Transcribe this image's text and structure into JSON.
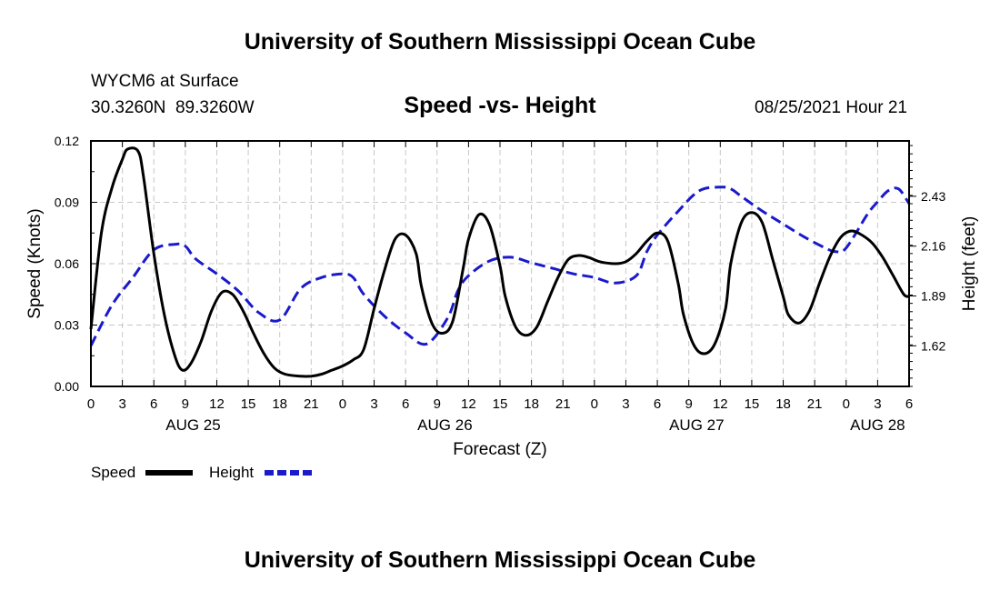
{
  "header": {
    "title": "University of Southern Mississippi Ocean Cube",
    "station": "WYCM6 at Surface",
    "coords": "30.3260N  89.3260W",
    "date": "08/25/2021 Hour 21"
  },
  "footer": {
    "title": "University of Southern Mississippi Ocean Cube"
  },
  "legend": {
    "speed_label": "Speed",
    "height_label": "Height"
  },
  "colors": {
    "speed": "#000000",
    "height": "#1a1acc",
    "grid": "#c8c8c8"
  },
  "chart_data": {
    "type": "line",
    "title": "Speed -vs- Height",
    "xlabel": "Forecast (Z)",
    "ylabel": "Speed (Knots)",
    "y2label": "Height (feet)",
    "xlim": [
      0,
      78
    ],
    "ylim": [
      0,
      0.12
    ],
    "y2lim": [
      1.4,
      2.73
    ],
    "yticks": [
      "0.00",
      "0.03",
      "0.06",
      "0.09",
      "0.12"
    ],
    "y2ticks": [
      "1.62",
      "1.89",
      "2.16",
      "2.43"
    ],
    "xticks": [
      "0",
      "3",
      "6",
      "9",
      "12",
      "15",
      "18",
      "21",
      "0",
      "3",
      "6",
      "9",
      "12",
      "15",
      "18",
      "21",
      "0",
      "3",
      "6",
      "9",
      "12",
      "15",
      "18",
      "21",
      "0",
      "3",
      "6"
    ],
    "day_labels": [
      {
        "label": "AUG 25",
        "hour": 9.75
      },
      {
        "label": "AUG 26",
        "hour": 33.75
      },
      {
        "label": "AUG 27",
        "hour": 57.75
      },
      {
        "label": "AUG 28",
        "hour": 75
      }
    ],
    "series": [
      {
        "name": "Speed",
        "axis": "left",
        "x": [
          0,
          1,
          2,
          3,
          3.5,
          4.5,
          5,
          6,
          7,
          8,
          8.7,
          9.5,
          10.5,
          11.5,
          12.5,
          13.5,
          14.5,
          15.5,
          16.5,
          17.5,
          18.5,
          20,
          21,
          22,
          23,
          24,
          25,
          26,
          27,
          28,
          29,
          30,
          31,
          31.5,
          32.5,
          33.5,
          34.5,
          35.5,
          36,
          37,
          38,
          39,
          39.5,
          40.5,
          41.5,
          42.5,
          43.5,
          44.5,
          45.5,
          46.5,
          47.5,
          48.5,
          50,
          51,
          52,
          53,
          54,
          55,
          56,
          56.5,
          57.5,
          58.5,
          59.5,
          60.5,
          61,
          62,
          63,
          64,
          65,
          66,
          66.5,
          67.5,
          68.5,
          69.5,
          70.5,
          71.5,
          72.5,
          73.5,
          74.5,
          75.5,
          76.5,
          77.5,
          78
        ],
        "values": [
          0.028,
          0.075,
          0.097,
          0.111,
          0.116,
          0.115,
          0.103,
          0.065,
          0.035,
          0.015,
          0.008,
          0.011,
          0.022,
          0.037,
          0.046,
          0.045,
          0.037,
          0.026,
          0.016,
          0.009,
          0.006,
          0.005,
          0.005,
          0.006,
          0.008,
          0.01,
          0.013,
          0.018,
          0.038,
          0.057,
          0.072,
          0.074,
          0.065,
          0.049,
          0.031,
          0.026,
          0.032,
          0.058,
          0.072,
          0.084,
          0.079,
          0.059,
          0.044,
          0.029,
          0.025,
          0.029,
          0.041,
          0.053,
          0.062,
          0.064,
          0.063,
          0.061,
          0.06,
          0.061,
          0.065,
          0.071,
          0.075,
          0.071,
          0.05,
          0.035,
          0.02,
          0.016,
          0.021,
          0.038,
          0.06,
          0.08,
          0.085,
          0.08,
          0.062,
          0.044,
          0.035,
          0.031,
          0.037,
          0.051,
          0.064,
          0.073,
          0.076,
          0.074,
          0.07,
          0.063,
          0.054,
          0.045,
          0.044
        ]
      },
      {
        "name": "Height",
        "axis": "right",
        "x": [
          0,
          2,
          4,
          6,
          8,
          9,
          10,
          12,
          14,
          16,
          18,
          20,
          22,
          24,
          25,
          26,
          28,
          30,
          32,
          34,
          35,
          36,
          38,
          40,
          42,
          44,
          46,
          48,
          50,
          52,
          53,
          54,
          56,
          58,
          60,
          61,
          62,
          64,
          66,
          68,
          70,
          71,
          72,
          74,
          75,
          76,
          77,
          78
        ],
        "values": [
          1.62,
          1.84,
          1.99,
          2.14,
          2.17,
          2.16,
          2.09,
          2.01,
          1.92,
          1.8,
          1.76,
          1.93,
          1.99,
          2.01,
          1.99,
          1.9,
          1.78,
          1.69,
          1.63,
          1.77,
          1.92,
          2.0,
          2.08,
          2.1,
          2.07,
          2.04,
          2.01,
          1.99,
          1.96,
          2.0,
          2.13,
          2.22,
          2.35,
          2.46,
          2.48,
          2.47,
          2.43,
          2.35,
          2.28,
          2.21,
          2.15,
          2.13,
          2.15,
          2.33,
          2.4,
          2.46,
          2.47,
          2.39
        ]
      }
    ]
  }
}
